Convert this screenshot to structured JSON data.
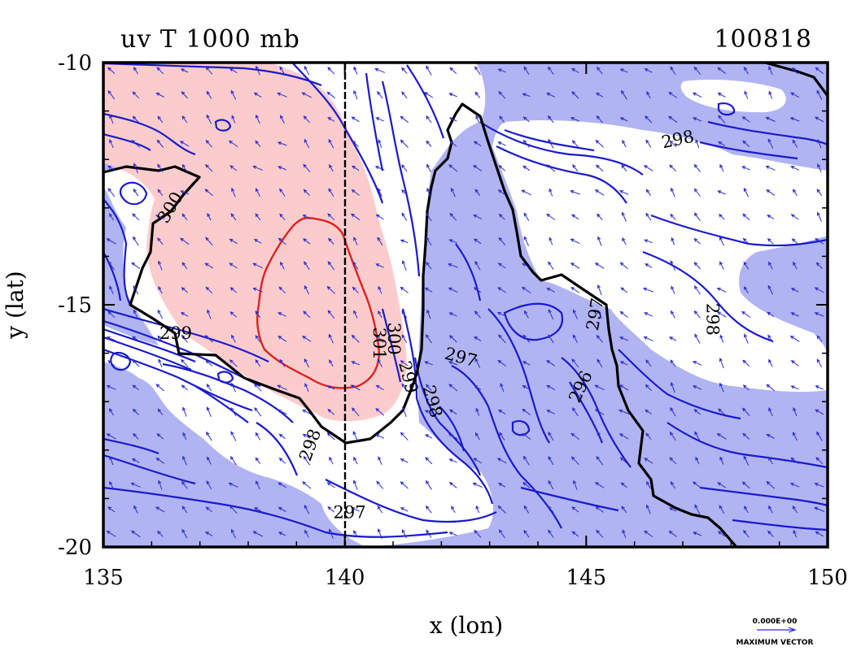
{
  "chart_data": {
    "type": "contour",
    "title_left": "uv T 1000 mb",
    "title_right": "100818",
    "xlabel": "x (lon)",
    "ylabel": "y (lat)",
    "xlim": [
      135,
      150
    ],
    "ylim": [
      -20,
      -10
    ],
    "x_ticks": [
      "135",
      "140",
      "145",
      "150"
    ],
    "y_ticks": [
      "-10",
      "-15",
      "-20"
    ],
    "contour_labels": [
      {
        "text": "298",
        "lon": 146.9,
        "lat": -11.6,
        "angle": -12
      },
      {
        "text": "300",
        "lon": 136.4,
        "lat": -13.0,
        "angle": -60
      },
      {
        "text": "299",
        "lon": 136.5,
        "lat": -15.6,
        "angle": 0
      },
      {
        "text": "301",
        "lon": 140.7,
        "lat": -15.8,
        "angle": 90
      },
      {
        "text": "300",
        "lon": 141.0,
        "lat": -15.7,
        "angle": 90
      },
      {
        "text": "299",
        "lon": 141.3,
        "lat": -16.5,
        "angle": 75
      },
      {
        "text": "298",
        "lon": 141.8,
        "lat": -17.0,
        "angle": 75
      },
      {
        "text": "297",
        "lon": 142.4,
        "lat": -16.1,
        "angle": 15
      },
      {
        "text": "297",
        "lon": 145.2,
        "lat": -15.2,
        "angle": -80
      },
      {
        "text": "296",
        "lon": 144.9,
        "lat": -16.7,
        "angle": -65
      },
      {
        "text": "298",
        "lon": 147.6,
        "lat": -15.3,
        "angle": 90
      },
      {
        "text": "298",
        "lon": 139.3,
        "lat": -17.9,
        "angle": -70
      },
      {
        "text": "297",
        "lon": 140.1,
        "lat": -19.3,
        "angle": 0
      }
    ],
    "shading": {
      "warm": "#fccccc",
      "cool": "#b0b4f2",
      "neutral": "#ffffff"
    },
    "colors": {
      "contour": "#1a1acc",
      "highlight_contour": "#e02020",
      "coastline": "#000000",
      "vectors": "#2b2bd0"
    },
    "vector_legend": {
      "value": "0.000E+00",
      "label": "MAXIMUM VECTOR"
    }
  }
}
